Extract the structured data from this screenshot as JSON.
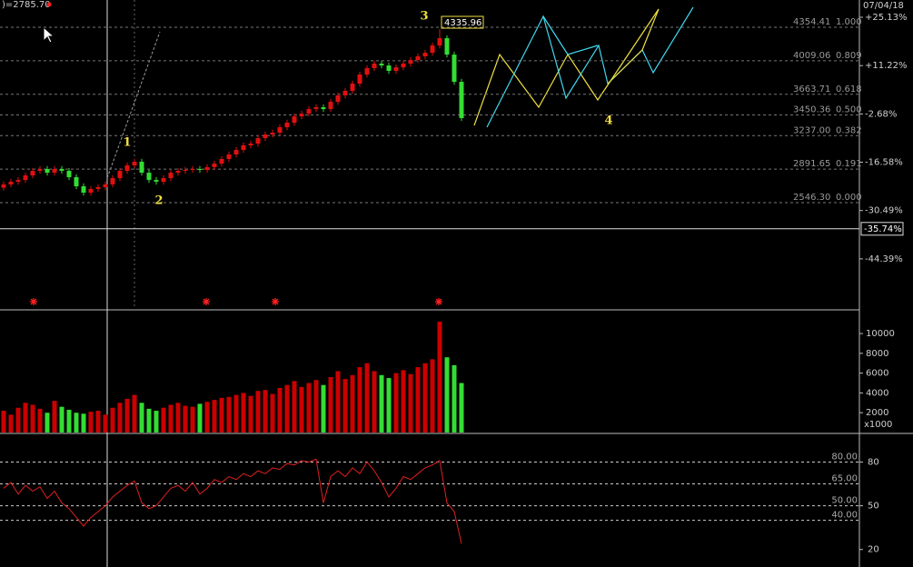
{
  "header": {
    "readout": ")=2785.70",
    "date": "07/04/18"
  },
  "chart_data": [
    {
      "type": "candlestick",
      "up_color": "#e01010",
      "down_color": "#33dd33",
      "open": [
        2700,
        2734,
        2762,
        2780,
        2827,
        2874,
        2893,
        2855,
        2893,
        2874,
        2809,
        2715,
        2649,
        2687,
        2706,
        2734,
        2799,
        2874,
        2930,
        2968,
        2855,
        2780,
        2762,
        2799,
        2855,
        2874,
        2884,
        2893,
        2884,
        2912,
        2949,
        2996,
        3043,
        3090,
        3137,
        3155,
        3211,
        3249,
        3268,
        3324,
        3371,
        3436,
        3464,
        3511,
        3530,
        3511,
        3586,
        3652,
        3699,
        3774,
        3867,
        3933,
        3980,
        3961,
        3905,
        3942,
        3980,
        4017,
        4055,
        4092,
        4167,
        4242,
        4073,
        3792
      ],
      "high": [
        2764,
        2792,
        2810,
        2857,
        2904,
        2923,
        2923,
        2923,
        2923,
        2904,
        2839,
        2745,
        2717,
        2736,
        2764,
        2829,
        2904,
        2960,
        2998,
        2998,
        2885,
        2810,
        2829,
        2885,
        2904,
        2914,
        2923,
        2923,
        2942,
        2979,
        3026,
        3073,
        3120,
        3167,
        3185,
        3241,
        3279,
        3298,
        3354,
        3401,
        3466,
        3494,
        3541,
        3560,
        3560,
        3616,
        3682,
        3729,
        3804,
        3897,
        3963,
        4010,
        4010,
        3991,
        3972,
        4010,
        4047,
        4085,
        4122,
        4197,
        4335.96,
        4272,
        4103,
        3822
      ],
      "low": [
        2670,
        2704,
        2732,
        2750,
        2797,
        2844,
        2825,
        2825,
        2844,
        2779,
        2685,
        2619,
        2619,
        2657,
        2676,
        2704,
        2769,
        2844,
        2900,
        2825,
        2750,
        2732,
        2732,
        2769,
        2825,
        2844,
        2854,
        2854,
        2854,
        2882,
        2919,
        2966,
        3013,
        3060,
        3107,
        3125,
        3181,
        3219,
        3238,
        3294,
        3341,
        3406,
        3434,
        3481,
        3481,
        3481,
        3556,
        3622,
        3669,
        3744,
        3837,
        3903,
        3931,
        3875,
        3875,
        3912,
        3950,
        3987,
        4025,
        4062,
        4137,
        4043,
        3762,
        3388
      ],
      "close": [
        2734,
        2762,
        2780,
        2827,
        2874,
        2893,
        2855,
        2893,
        2874,
        2809,
        2715,
        2649,
        2687,
        2706,
        2734,
        2799,
        2874,
        2930,
        2968,
        2855,
        2780,
        2762,
        2799,
        2855,
        2874,
        2884,
        2893,
        2884,
        2912,
        2949,
        2996,
        3043,
        3090,
        3137,
        3155,
        3211,
        3249,
        3268,
        3324,
        3371,
        3436,
        3464,
        3511,
        3530,
        3511,
        3586,
        3652,
        3699,
        3774,
        3867,
        3933,
        3980,
        3961,
        3905,
        3942,
        3980,
        4017,
        4055,
        4092,
        4167,
        4242,
        4073,
        3792,
        3418
      ],
      "ylim": [
        1450,
        4636
      ],
      "y2lim": [
        -58.8,
        30.1
      ],
      "y2ticks": [
        {
          "value": 25.13,
          "label": "+25.13%"
        },
        {
          "value": 11.22,
          "label": "+11.22%"
        },
        {
          "value": -2.68,
          "label": "-2.68%"
        },
        {
          "value": -16.58,
          "label": "-16.58%"
        },
        {
          "value": -30.49,
          "label": "-30.49%"
        },
        {
          "value": -44.39,
          "label": "-44.39%"
        }
      ],
      "marker": {
        "value": -35.74,
        "label": "-35.74%"
      },
      "fib_levels": [
        {
          "price": 4354.41,
          "ratio": "1.000"
        },
        {
          "price": 4009.06,
          "ratio": "0.809"
        },
        {
          "price": 3663.71,
          "ratio": "0.618"
        },
        {
          "price": 3450.36,
          "ratio": "0.500"
        },
        {
          "price": {
            "value": 3237,
            "label": "3237.00"
          },
          "ratio": "0.382"
        },
        {
          "price": 2891.65,
          "ratio": "0.191"
        },
        {
          "price": {
            "value": 2546.3,
            "label": "2546.30"
          },
          "ratio": "0.000"
        }
      ],
      "wave_labels": [
        "1",
        "2",
        "3",
        "4"
      ]
    },
    {
      "type": "bar",
      "up_color": "#cc0000",
      "down_color": "#33dd33",
      "values": [
        2200,
        1800,
        2500,
        3000,
        2800,
        2400,
        2000,
        3200,
        2600,
        2300,
        2000,
        1900,
        2100,
        2200,
        1800,
        2500,
        3000,
        3400,
        3800,
        3000,
        2400,
        2200,
        2500,
        2800,
        3000,
        2700,
        2600,
        2900,
        3100,
        3300,
        3500,
        3600,
        3800,
        4000,
        3700,
        4200,
        4300,
        3900,
        4500,
        4800,
        5200,
        4600,
        5000,
        5300,
        4800,
        5600,
        6200,
        5400,
        5800,
        6600,
        7000,
        6200,
        5800,
        5500,
        6000,
        6300,
        5900,
        6600,
        7000,
        7400,
        11200,
        7600,
        6800,
        5000
      ],
      "ylim": [
        0,
        12300
      ],
      "yticks": [
        2000,
        4000,
        6000,
        8000,
        10000
      ],
      "unit_label": "x1000"
    },
    {
      "type": "line",
      "color": "#e02020",
      "values": [
        62,
        66,
        58,
        64,
        60,
        63,
        55,
        60,
        52,
        48,
        42,
        36,
        42,
        46,
        50,
        56,
        60,
        64,
        67,
        52,
        48,
        50,
        56,
        62,
        64,
        60,
        66,
        58,
        62,
        68,
        66,
        70,
        68,
        72,
        70,
        74,
        72,
        76,
        75,
        79,
        78,
        81,
        80,
        82,
        52,
        70,
        74,
        70,
        76,
        72,
        80,
        74,
        66,
        56,
        62,
        70,
        68,
        72,
        76,
        78,
        81,
        52,
        46,
        24
      ],
      "ylim": [
        8,
        99
      ],
      "yticks": [
        20,
        50,
        80
      ],
      "levels": [
        {
          "value": 80,
          "label": "80.00"
        },
        {
          "value": 65,
          "label": "65.00"
        },
        {
          "value": 50,
          "label": "50.00"
        },
        {
          "value": 40,
          "label": "40.00"
        }
      ]
    }
  ]
}
